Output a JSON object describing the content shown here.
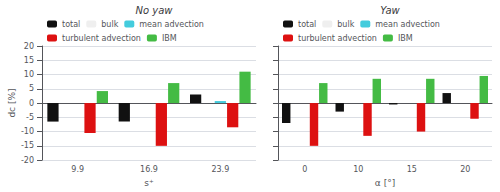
{
  "chart_data": [
    {
      "type": "bar",
      "title": "No yaw",
      "xlabel": "s⁺",
      "ylabel": "dc [%]",
      "categories": [
        "9.9",
        "16.9",
        "23.9"
      ],
      "series": [
        {
          "name": "total",
          "color": "#111111",
          "values": [
            -6.5,
            -6.5,
            3.0
          ]
        },
        {
          "name": "bulk",
          "color": "#efefef",
          "values": [
            0.0,
            0.0,
            0.0
          ]
        },
        {
          "name": "mean advection",
          "color": "#44ccdd",
          "values": [
            0.0,
            0.0,
            0.7
          ]
        },
        {
          "name": "turbulent advection",
          "color": "#dd1111",
          "values": [
            -10.5,
            -15.0,
            -8.5
          ]
        },
        {
          "name": "IBM",
          "color": "#44bb44",
          "values": [
            4.2,
            7.0,
            11.0
          ]
        }
      ],
      "ylim": [
        -20,
        20
      ],
      "yticks": [
        -20,
        -15,
        -10,
        -5,
        0,
        5,
        10,
        15,
        20
      ],
      "grid": true,
      "legend": "upper left"
    },
    {
      "type": "bar",
      "title": "Yaw",
      "xlabel": "α [°]",
      "categories": [
        "0",
        "10",
        "15",
        "20"
      ],
      "series": [
        {
          "name": "total",
          "color": "#111111",
          "values": [
            -7.0,
            -3.0,
            -0.5,
            3.5
          ]
        },
        {
          "name": "bulk",
          "color": "#efefef",
          "values": [
            0.0,
            0.0,
            0.0,
            0.0
          ]
        },
        {
          "name": "mean advection",
          "color": "#44ccdd",
          "values": [
            0.0,
            0.0,
            0.0,
            0.0
          ]
        },
        {
          "name": "turbulent advection",
          "color": "#dd1111",
          "values": [
            -15.0,
            -11.5,
            -10.0,
            -5.5
          ]
        },
        {
          "name": "IBM",
          "color": "#44bb44",
          "values": [
            7.0,
            8.5,
            8.5,
            9.5
          ]
        }
      ],
      "ylim": [
        -20,
        20
      ],
      "yticks": [
        -20,
        -15,
        -10,
        -5,
        0,
        5,
        10,
        15,
        20
      ],
      "grid": true,
      "legend": "upper left",
      "tick_labels": "x"
    }
  ]
}
